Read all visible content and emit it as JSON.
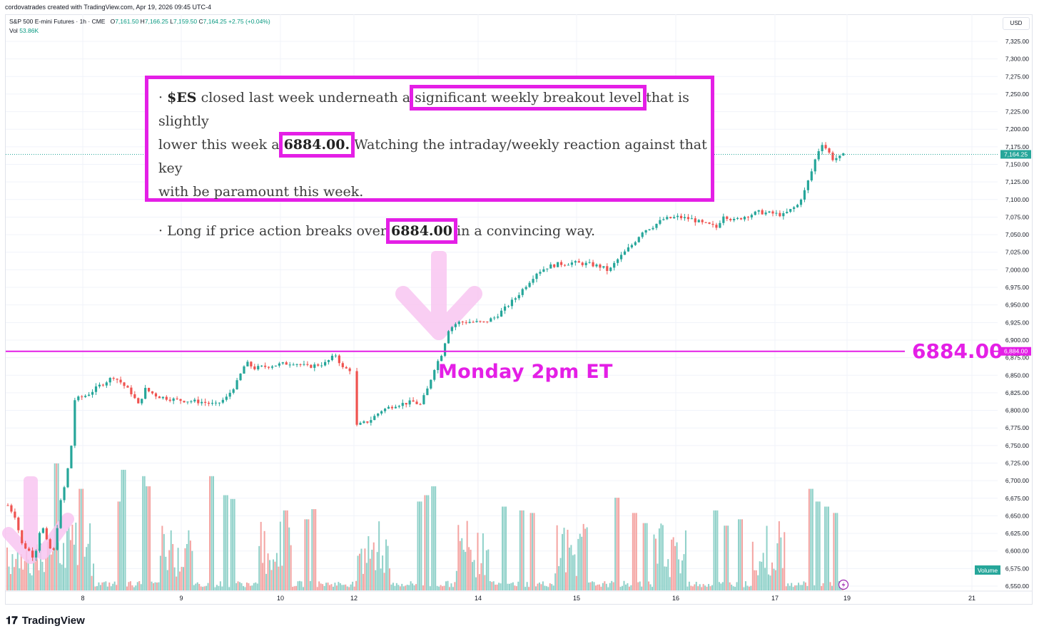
{
  "header": {
    "created_by": "cordovatrades created with TradingView.com, Apr 19, 2026 09:45 UTC-4"
  },
  "legend": {
    "symbol": "S&P 500 E-mini Futures · 1h · CME",
    "open_label": "O",
    "open": "7,161.50",
    "high_label": "H",
    "high": "7,166.25",
    "low_label": "L",
    "low": "7,159.50",
    "close_label": "C",
    "close": "7,164.25",
    "change": "+2.75 (+0.04%)",
    "vol_label": "Vol",
    "vol": "53.86K"
  },
  "currency": "USD",
  "annotation": {
    "l1a": "· ",
    "l1b": "$ES",
    "l1c": " closed last week underneath a ",
    "l1d": "significant weekly breakout level",
    "l1e": " that is slightly",
    "l2a": "lower this week a ",
    "l2b": "6884.00.",
    "l2c": " Watching the intraday/weekly reaction against that key",
    "l3": "with be paramount this week.",
    "l4a": "· Long if price action breaks over ",
    "l4b": "6884.00",
    "l4c": " in a convincing way."
  },
  "marker_text": "Monday 2pm ET",
  "level_text": "6884.00",
  "level_tag": "6,884.00",
  "last_price_tag": "7,164.25",
  "volume_tag": "Volume",
  "brand": "TradingView",
  "colors": {
    "up": "#26a69a",
    "down": "#ef5350",
    "accent": "#e41fe6",
    "vol_up": "#8fd1c9",
    "vol_down": "#f4a3a1"
  },
  "chart_data": {
    "type": "candlestick",
    "title": "S&P 500 E-mini Futures · 1h · CME",
    "ylim": [
      6545,
      7340
    ],
    "y_ticks": [
      "7,325.00",
      "7,300.00",
      "7,275.00",
      "7,250.00",
      "7,225.00",
      "7,200.00",
      "7,175.00",
      "7,150.00",
      "7,125.00",
      "7,100.00",
      "7,075.00",
      "7,050.00",
      "7,025.00",
      "7,000.00",
      "6,975.00",
      "6,950.00",
      "6,925.00",
      "6,900.00",
      "6,875.00",
      "6,850.00",
      "6,825.00",
      "6,800.00",
      "6,775.00",
      "6,750.00",
      "6,725.00",
      "6,700.00",
      "6,675.00",
      "6,650.00",
      "6,625.00",
      "6,600.00",
      "6,575.00",
      "6,550.00"
    ],
    "x_ticks": [
      "8",
      "9",
      "10",
      "12",
      "14",
      "15",
      "16",
      "17",
      "19",
      "21"
    ],
    "horizontal_level": 6884.0,
    "last_price": 7164.25,
    "path": [
      [
        0,
        6665
      ],
      [
        4,
        6650
      ],
      [
        8,
        6610
      ],
      [
        12,
        6600
      ],
      [
        15,
        6590
      ],
      [
        19,
        6640
      ],
      [
        23,
        6605
      ],
      [
        26,
        6600
      ],
      [
        30,
        6670
      ],
      [
        33,
        6700
      ],
      [
        36,
        6750
      ],
      [
        38,
        6815
      ],
      [
        45,
        6822
      ],
      [
        52,
        6835
      ],
      [
        60,
        6848
      ],
      [
        64,
        6840
      ],
      [
        70,
        6825
      ],
      [
        74,
        6808
      ],
      [
        78,
        6830
      ],
      [
        85,
        6820
      ],
      [
        95,
        6815
      ],
      [
        110,
        6812
      ],
      [
        118,
        6808
      ],
      [
        124,
        6818
      ],
      [
        130,
        6840
      ],
      [
        135,
        6868
      ],
      [
        140,
        6860
      ],
      [
        150,
        6864
      ],
      [
        162,
        6868
      ],
      [
        170,
        6862
      ],
      [
        180,
        6867
      ],
      [
        186,
        6879
      ],
      [
        190,
        6860
      ],
      [
        194,
        6858
      ],
      [
        198,
        6778
      ],
      [
        205,
        6785
      ],
      [
        212,
        6800
      ],
      [
        220,
        6808
      ],
      [
        230,
        6812
      ],
      [
        234,
        6808
      ],
      [
        238,
        6830
      ],
      [
        242,
        6860
      ],
      [
        246,
        6880
      ],
      [
        250,
        6915
      ],
      [
        255,
        6925
      ],
      [
        262,
        6926
      ],
      [
        270,
        6925
      ],
      [
        276,
        6932
      ],
      [
        282,
        6945
      ],
      [
        288,
        6960
      ],
      [
        294,
        6978
      ],
      [
        300,
        6996
      ],
      [
        306,
        7004
      ],
      [
        312,
        7008
      ],
      [
        320,
        7010
      ],
      [
        330,
        7008
      ],
      [
        337,
        7004
      ],
      [
        341,
        6998
      ],
      [
        345,
        7012
      ],
      [
        350,
        7025
      ],
      [
        355,
        7038
      ],
      [
        360,
        7055
      ],
      [
        366,
        7062
      ],
      [
        372,
        7072
      ],
      [
        380,
        7075
      ],
      [
        388,
        7072
      ],
      [
        394,
        7066
      ],
      [
        399,
        7063
      ],
      [
        402,
        7060
      ],
      [
        406,
        7078
      ],
      [
        412,
        7070
      ],
      [
        418,
        7076
      ],
      [
        426,
        7082
      ],
      [
        434,
        7080
      ],
      [
        440,
        7078
      ],
      [
        448,
        7092
      ],
      [
        452,
        7112
      ],
      [
        456,
        7140
      ],
      [
        459,
        7165
      ],
      [
        462,
        7180
      ],
      [
        465,
        7170
      ],
      [
        468,
        7158
      ],
      [
        472,
        7160
      ],
      [
        475,
        7164.25
      ]
    ],
    "gaps": [
      [
        194,
        198
      ]
    ],
    "volume_bars": 475,
    "volume_ylim": [
      0,
      10
    ]
  }
}
